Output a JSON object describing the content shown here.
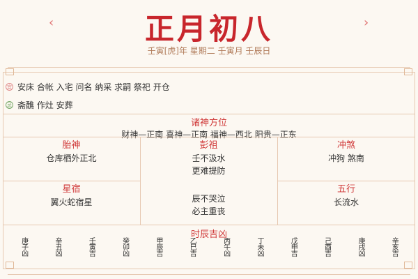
{
  "header": {
    "title": "正月初八",
    "prev": "‹",
    "next": "›",
    "subtitle": "壬寅[虎]年 星期二 壬寅月 壬辰日"
  },
  "yi": {
    "icon": "宜",
    "text": "安床 合帐 入宅 问名 纳采 求嗣 祭祀 开仓",
    "color": "#e08a8a"
  },
  "ji": {
    "icon": "忌",
    "text": "斋醮 作灶 安葬",
    "color": "#7aaa6a"
  },
  "zhushen": {
    "title": "诸神方位",
    "text": "财神—正南 喜神—正南 福神—西北 阳贵—正东"
  },
  "taishen": {
    "title": "胎神",
    "text": "仓库栖外正北"
  },
  "pengzu": {
    "title": "彭祖",
    "line1": "壬不汲水",
    "line2": "更难提防",
    "line3": "辰不哭泣",
    "line4": "必主重丧"
  },
  "chongsha": {
    "title": "冲煞",
    "text": "冲狗 煞南"
  },
  "xingxiu": {
    "title": "星宿",
    "text": "翼火蛇宿星"
  },
  "wuxing": {
    "title": "五行",
    "text": "长流水"
  },
  "hours": {
    "title": "时辰吉凶",
    "items": [
      "庚子凶",
      "辛丑凶",
      "壬寅吉",
      "癸卯凶",
      "甲辰吉",
      "乙巳吉",
      "丙午凶",
      "丁未凶",
      "戊申吉",
      "己酉吉",
      "庚戌凶",
      "辛亥吉"
    ]
  },
  "colors": {
    "accent": "#c8262c",
    "border": "#e6c8b0",
    "background": "#fcf8f2"
  }
}
